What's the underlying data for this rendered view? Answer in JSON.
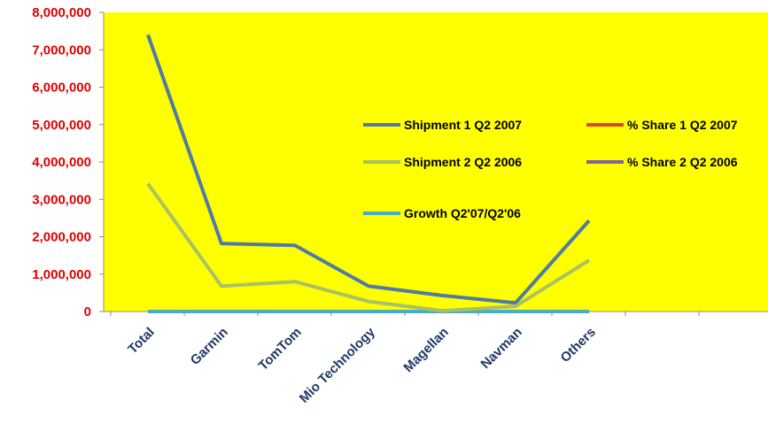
{
  "chart_data": {
    "type": "line",
    "categories": [
      "Total",
      "Garmin",
      "TomTom",
      "Mio Technology",
      "Magellan",
      "Navman",
      "Others"
    ],
    "ylim": [
      0,
      8000000
    ],
    "yticks": [
      "0",
      "1,000,000",
      "2,000,000",
      "3,000,000",
      "4,000,000",
      "5,000,000",
      "6,000,000",
      "7,000,000",
      "8,000,000"
    ],
    "grid": false,
    "legend_placement": "inside, upper-right",
    "plot_background": "#FFFF00",
    "tick_color": "#E00000",
    "axis_label_color": "#1F3864",
    "series": [
      {
        "name": "Shipment 1 Q2 2007",
        "color": "#4F7BA6",
        "values": [
          7400000,
          1820000,
          1770000,
          680000,
          430000,
          230000,
          2430000
        ]
      },
      {
        "name": "% Share 1 Q2 2007",
        "color": "#E0452B",
        "values": [
          0,
          0,
          0,
          0,
          0,
          0,
          0
        ]
      },
      {
        "name": "Shipment 2 Q2 2006",
        "color": "#A9C162",
        "values": [
          3420000,
          680000,
          800000,
          270000,
          20000,
          140000,
          1370000
        ]
      },
      {
        "name": "% Share 2 Q2 2006",
        "color": "#8064A2",
        "values": [
          0,
          0,
          0,
          0,
          0,
          0,
          0
        ]
      },
      {
        "name": "Growth Q2'07/Q2'06",
        "color": "#4BACC6",
        "values": [
          0,
          0,
          0,
          0,
          0,
          0,
          0
        ]
      }
    ]
  }
}
